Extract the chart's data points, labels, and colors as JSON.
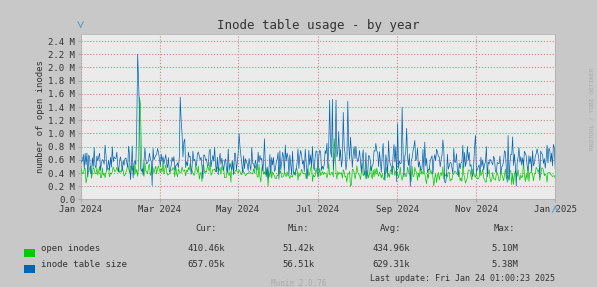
{
  "title": "Inode table usage - by year",
  "ylabel": "number of open inodes",
  "background_color": "#C8C8C8",
  "plot_bg_color": "#EBEBEB",
  "grid_color": "#CC8888",
  "line1_color": "#00CC00",
  "line2_color": "#0066B3",
  "legend_label1": "open inodes",
  "legend_label2": "inode table size",
  "cur1": "410.46k",
  "cur2": "657.05k",
  "min1": "51.42k",
  "min2": "56.51k",
  "avg1": "434.96k",
  "avg2": "629.31k",
  "max1": "5.10M",
  "max2": "5.38M",
  "footer": "Last update: Fri Jan 24 01:00:23 2025",
  "munin_version": "Munin 2.0.76",
  "side_label": "RRDTOOL / TOBI OETIKER",
  "font_color": "#333333",
  "side_label_color": "#AAAAAA",
  "munin_color": "#AAAAAA",
  "y_ticks": [
    0.0,
    0.2,
    0.4,
    0.6,
    0.8,
    1.0,
    1.2,
    1.4,
    1.6,
    1.8,
    2.0,
    2.2,
    2.4
  ],
  "y_labels": [
    "0.0",
    "0.2 M",
    "0.4 M",
    "0.6 M",
    "0.8 M",
    "1.0 M",
    "1.2 M",
    "1.4 M",
    "1.6 M",
    "1.8 M",
    "2.0 M",
    "2.2 M",
    "2.4 M"
  ],
  "ylim": [
    0.0,
    2.5
  ],
  "month_positions": [
    0,
    61,
    121,
    183,
    244,
    305,
    366
  ],
  "month_labels": [
    "Jan 2024",
    "Mar 2024",
    "May 2024",
    "Jul 2024",
    "Sep 2024",
    "Nov 2024",
    "Jan 2025"
  ]
}
